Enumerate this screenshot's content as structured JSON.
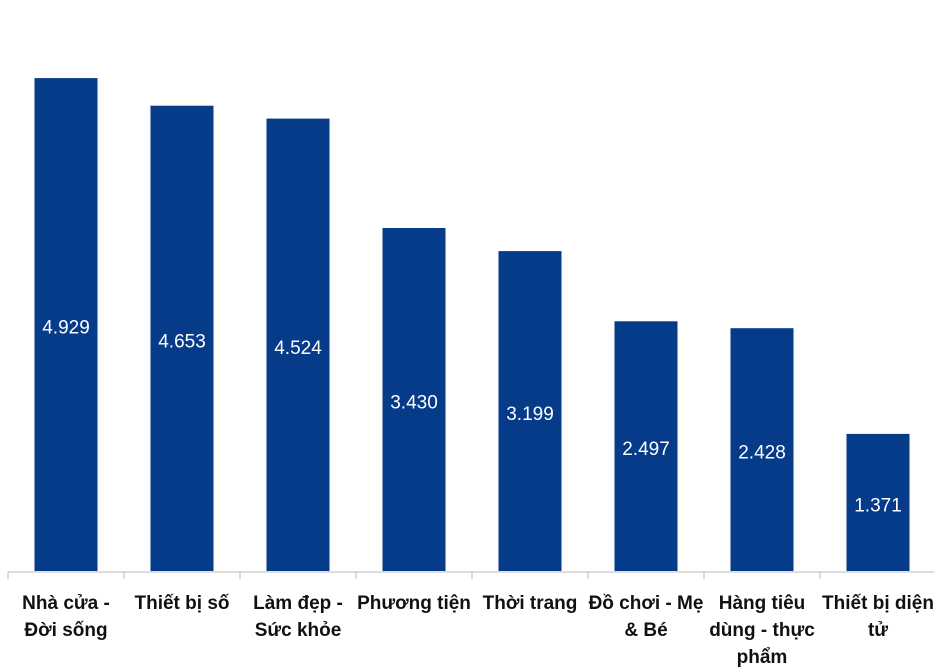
{
  "chart_data": {
    "type": "bar",
    "categories": [
      "Nhà cửa - Đời sống",
      "Thiết bị số",
      "Làm đẹp - Sức khỏe",
      "Phương tiện",
      "Thời trang",
      "Đồ chơi - Mẹ & Bé",
      "Hàng tiêu dùng - thực phẩm",
      "Thiết bị diện tử"
    ],
    "values": [
      4.929,
      4.653,
      4.524,
      3.43,
      3.199,
      2.497,
      2.428,
      1.371
    ],
    "value_labels": [
      "4.929",
      "4.653",
      "4.524",
      "3.430",
      "3.199",
      "2.497",
      "2.428",
      "1.371"
    ],
    "color": "#063b8a"
  }
}
